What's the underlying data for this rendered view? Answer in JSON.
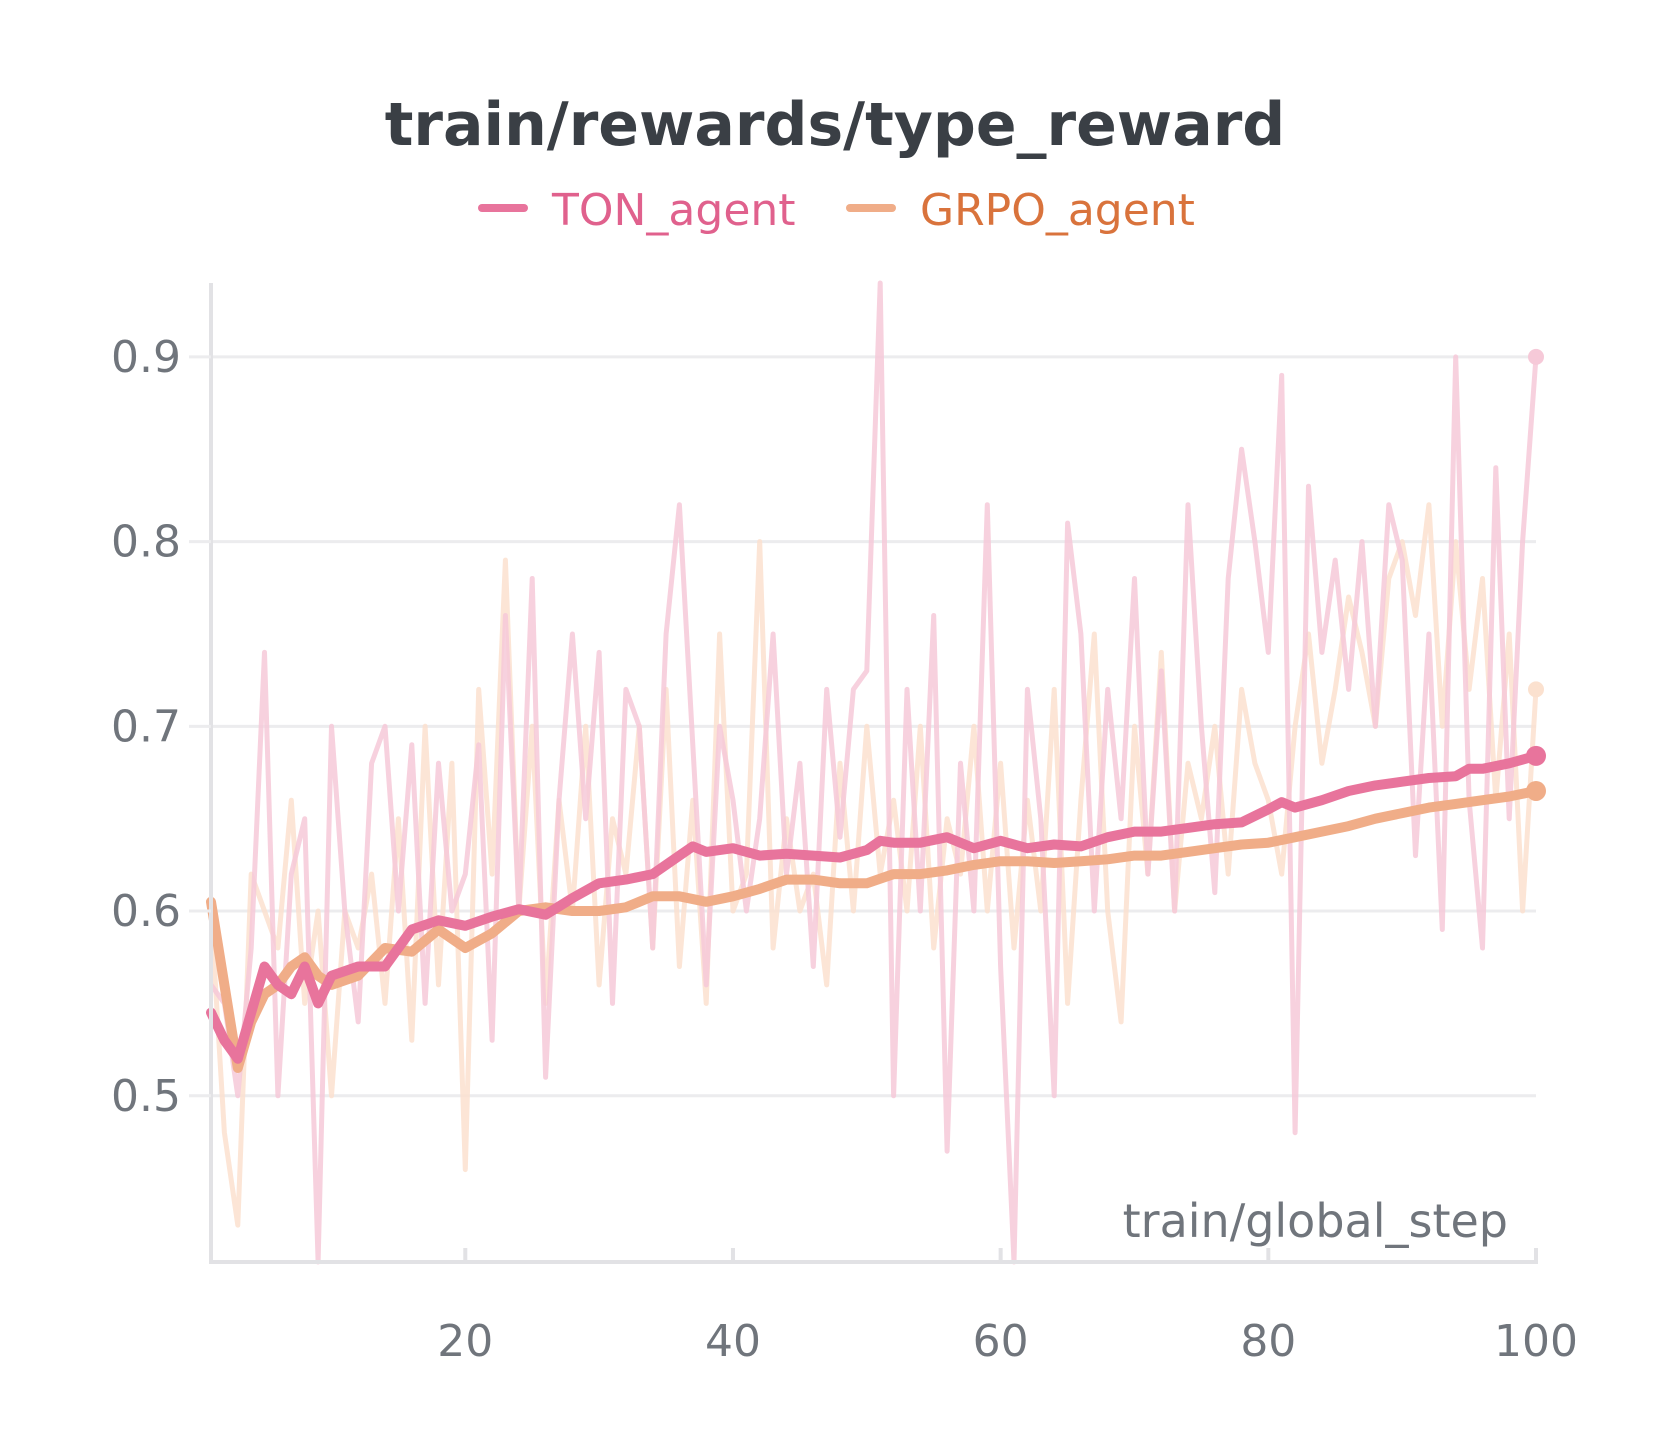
{
  "chart_data": {
    "type": "line",
    "title": "train/rewards/type_reward",
    "xlabel": "train/global_step",
    "ylabel": "",
    "xlim": [
      1,
      100
    ],
    "ylim": [
      0.41,
      0.94
    ],
    "x_ticks": [
      20,
      40,
      60,
      80,
      100
    ],
    "x_tick_labels": [
      "20",
      "40",
      "60",
      "80",
      "100"
    ],
    "y_ticks": [
      0.5,
      0.6,
      0.7,
      0.8,
      0.9
    ],
    "y_tick_labels": [
      "0.5",
      "0.6",
      "0.7",
      "0.8",
      "0.9"
    ],
    "grid": true,
    "legend": "top-center",
    "colors": {
      "TON_agent": "#e8749c",
      "TON_agent_raw": "#f6c9d8",
      "TON_agent_text": "#e0618d",
      "GRPO_agent": "#f0ad88",
      "GRPO_agent_raw": "#fbe1cf",
      "GRPO_agent_text": "#d9733c",
      "grid": "#ececee",
      "axis": "#e2e2e5"
    },
    "series": [
      {
        "name": "TON_agent",
        "x_smoothed": [
          1,
          2,
          3,
          4,
          5,
          6,
          7,
          8,
          9,
          10,
          12,
          14,
          16,
          18,
          20,
          22,
          24,
          26,
          28,
          30,
          32,
          34,
          36,
          37,
          38,
          40,
          42,
          44,
          46,
          48,
          50,
          51,
          52,
          54,
          56,
          58,
          60,
          62,
          64,
          66,
          68,
          70,
          72,
          74,
          76,
          78,
          80,
          81,
          82,
          84,
          86,
          88,
          90,
          92,
          94,
          95,
          96,
          98,
          100
        ],
        "smoothed": [
          0.545,
          0.53,
          0.52,
          0.545,
          0.57,
          0.56,
          0.555,
          0.57,
          0.55,
          0.565,
          0.57,
          0.57,
          0.59,
          0.595,
          0.592,
          0.597,
          0.601,
          0.598,
          0.607,
          0.615,
          0.617,
          0.62,
          0.63,
          0.635,
          0.632,
          0.634,
          0.63,
          0.631,
          0.63,
          0.629,
          0.633,
          0.638,
          0.637,
          0.637,
          0.64,
          0.634,
          0.638,
          0.634,
          0.636,
          0.635,
          0.64,
          0.643,
          0.643,
          0.645,
          0.647,
          0.648,
          0.655,
          0.659,
          0.656,
          0.66,
          0.665,
          0.668,
          0.67,
          0.672,
          0.673,
          0.677,
          0.677,
          0.68,
          0.684
        ],
        "x_raw": [
          1,
          2,
          3,
          4,
          5,
          6,
          7,
          8,
          9,
          10,
          11,
          12,
          13,
          14,
          15,
          16,
          17,
          18,
          19,
          20,
          21,
          22,
          23,
          24,
          25,
          26,
          27,
          28,
          29,
          30,
          31,
          32,
          33,
          34,
          35,
          36,
          37,
          38,
          39,
          40,
          41,
          42,
          43,
          44,
          45,
          46,
          47,
          48,
          49,
          50,
          51,
          52,
          53,
          54,
          55,
          56,
          57,
          58,
          59,
          60,
          61,
          62,
          63,
          64,
          65,
          66,
          67,
          68,
          69,
          70,
          71,
          72,
          73,
          74,
          75,
          76,
          77,
          78,
          79,
          80,
          81,
          82,
          83,
          84,
          85,
          86,
          87,
          88,
          89,
          90,
          91,
          92,
          93,
          94,
          95,
          96,
          97,
          98,
          99,
          100
        ],
        "raw": [
          0.56,
          0.55,
          0.5,
          0.58,
          0.74,
          0.5,
          0.62,
          0.65,
          0.41,
          0.7,
          0.6,
          0.54,
          0.68,
          0.7,
          0.6,
          0.69,
          0.55,
          0.68,
          0.6,
          0.62,
          0.69,
          0.53,
          0.76,
          0.6,
          0.78,
          0.51,
          0.66,
          0.75,
          0.65,
          0.74,
          0.55,
          0.72,
          0.7,
          0.58,
          0.75,
          0.82,
          0.69,
          0.56,
          0.7,
          0.66,
          0.6,
          0.65,
          0.75,
          0.62,
          0.68,
          0.57,
          0.72,
          0.64,
          0.72,
          0.73,
          0.94,
          0.5,
          0.72,
          0.6,
          0.76,
          0.47,
          0.68,
          0.6,
          0.82,
          0.57,
          0.41,
          0.72,
          0.65,
          0.5,
          0.81,
          0.75,
          0.6,
          0.72,
          0.65,
          0.78,
          0.62,
          0.73,
          0.6,
          0.82,
          0.7,
          0.61,
          0.78,
          0.85,
          0.8,
          0.74,
          0.89,
          0.48,
          0.83,
          0.74,
          0.79,
          0.72,
          0.8,
          0.7,
          0.82,
          0.79,
          0.63,
          0.75,
          0.59,
          0.9,
          0.66,
          0.58,
          0.84,
          0.65,
          0.8,
          0.9
        ]
      },
      {
        "name": "GRPO_agent",
        "x_smoothed": [
          1,
          2,
          3,
          4,
          5,
          6,
          7,
          8,
          9,
          10,
          12,
          14,
          16,
          18,
          20,
          22,
          24,
          26,
          28,
          30,
          32,
          34,
          36,
          38,
          40,
          42,
          44,
          46,
          48,
          50,
          52,
          54,
          56,
          58,
          60,
          62,
          64,
          66,
          68,
          70,
          72,
          74,
          76,
          78,
          80,
          82,
          84,
          86,
          88,
          90,
          92,
          94,
          96,
          98,
          100
        ],
        "smoothed": [
          0.605,
          0.56,
          0.515,
          0.54,
          0.555,
          0.56,
          0.57,
          0.575,
          0.565,
          0.56,
          0.565,
          0.58,
          0.578,
          0.59,
          0.58,
          0.588,
          0.6,
          0.602,
          0.6,
          0.6,
          0.602,
          0.608,
          0.608,
          0.605,
          0.608,
          0.612,
          0.617,
          0.617,
          0.615,
          0.615,
          0.62,
          0.62,
          0.622,
          0.625,
          0.627,
          0.627,
          0.626,
          0.627,
          0.628,
          0.63,
          0.63,
          0.632,
          0.634,
          0.636,
          0.637,
          0.64,
          0.643,
          0.646,
          0.65,
          0.653,
          0.656,
          0.658,
          0.66,
          0.662,
          0.665
        ],
        "x_raw": [
          1,
          2,
          3,
          4,
          5,
          6,
          7,
          8,
          9,
          10,
          11,
          12,
          13,
          14,
          15,
          16,
          17,
          18,
          19,
          20,
          21,
          22,
          23,
          24,
          25,
          26,
          27,
          28,
          29,
          30,
          31,
          32,
          33,
          34,
          35,
          36,
          37,
          38,
          39,
          40,
          41,
          42,
          43,
          44,
          45,
          46,
          47,
          48,
          49,
          50,
          51,
          52,
          53,
          54,
          55,
          56,
          57,
          58,
          59,
          60,
          61,
          62,
          63,
          64,
          65,
          66,
          67,
          68,
          69,
          70,
          71,
          72,
          73,
          74,
          75,
          76,
          77,
          78,
          79,
          80,
          81,
          82,
          83,
          84,
          85,
          86,
          87,
          88,
          89,
          90,
          91,
          92,
          93,
          94,
          95,
          96,
          97,
          98,
          99,
          100
        ],
        "raw": [
          0.6,
          0.48,
          0.43,
          0.62,
          0.6,
          0.58,
          0.66,
          0.55,
          0.6,
          0.5,
          0.6,
          0.58,
          0.62,
          0.55,
          0.65,
          0.53,
          0.7,
          0.56,
          0.68,
          0.46,
          0.72,
          0.62,
          0.79,
          0.6,
          0.7,
          0.55,
          0.66,
          0.6,
          0.7,
          0.56,
          0.65,
          0.62,
          0.7,
          0.58,
          0.72,
          0.57,
          0.66,
          0.55,
          0.75,
          0.6,
          0.62,
          0.8,
          0.58,
          0.65,
          0.6,
          0.62,
          0.56,
          0.68,
          0.6,
          0.7,
          0.62,
          0.66,
          0.6,
          0.7,
          0.58,
          0.65,
          0.62,
          0.7,
          0.6,
          0.68,
          0.58,
          0.66,
          0.6,
          0.72,
          0.55,
          0.66,
          0.75,
          0.6,
          0.54,
          0.7,
          0.62,
          0.74,
          0.6,
          0.68,
          0.65,
          0.7,
          0.62,
          0.72,
          0.68,
          0.66,
          0.62,
          0.7,
          0.75,
          0.68,
          0.72,
          0.77,
          0.74,
          0.7,
          0.78,
          0.8,
          0.76,
          0.82,
          0.7,
          0.8,
          0.72,
          0.78,
          0.66,
          0.75,
          0.6,
          0.72
        ]
      }
    ]
  }
}
